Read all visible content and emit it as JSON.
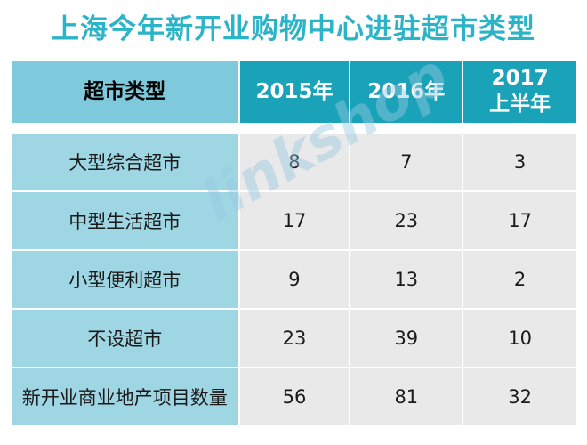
{
  "title": "上海今年新开业购物中心进驻超市类型",
  "table": {
    "headers": [
      "超市类型",
      "2015年",
      "2016年",
      "2017\n上半年"
    ],
    "header_col3_line1": "2017",
    "header_col3_line2": "上半年",
    "rows": [
      {
        "label": "大型综合超市",
        "values": [
          "8",
          "7",
          "3"
        ]
      },
      {
        "label": "中型生活超市",
        "values": [
          "17",
          "23",
          "17"
        ]
      },
      {
        "label": "小型便利超市",
        "values": [
          "9",
          "13",
          "2"
        ]
      },
      {
        "label": "不设超市",
        "values": [
          "23",
          "39",
          "10"
        ]
      },
      {
        "label": "新开业商业地产项目数量",
        "values": [
          "56",
          "81",
          "32"
        ]
      }
    ]
  },
  "watermark": {
    "text": "linkshop"
  },
  "colors": {
    "title": "#2bb3c8",
    "header_dark": "#1aa3b8",
    "header_light": "#7ec9db",
    "label_cell": "#9fd6e4",
    "value_cell": "#e9e9e9"
  }
}
